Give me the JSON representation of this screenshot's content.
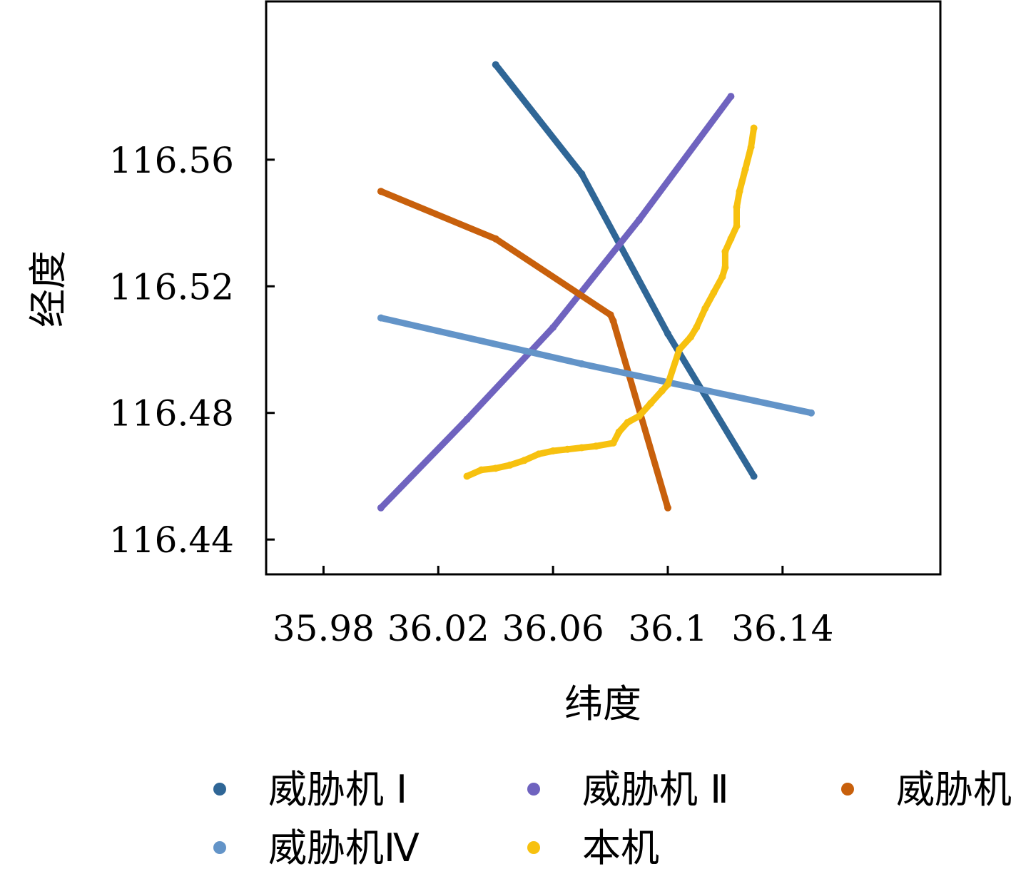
{
  "chart_data": {
    "type": "scatter",
    "xlabel": "纬度",
    "ylabel": "经度",
    "xlim": [
      35.96,
      36.195
    ],
    "ylim": [
      116.429,
      116.61
    ],
    "xticks": [
      35.98,
      36.02,
      36.06,
      36.1,
      36.14
    ],
    "xtick_labels": [
      "35.98",
      "36.02",
      "36.06",
      "36.1",
      "36.14"
    ],
    "yticks": [
      116.44,
      116.48,
      116.52,
      116.56
    ],
    "ytick_labels": [
      "116.44",
      "116.48",
      "116.52",
      "116.56"
    ],
    "grid": false,
    "legend_position": "bottom",
    "series": [
      {
        "name": "威胁机 Ⅰ",
        "color": "#2f6696",
        "points": [
          [
            36.04,
            116.59
          ],
          [
            36.07,
            116.5555
          ],
          [
            36.1,
            116.505
          ],
          [
            36.13,
            116.46
          ]
        ]
      },
      {
        "name": "威胁机 Ⅱ",
        "color": "#6f63bf",
        "points": [
          [
            36.0,
            116.45
          ],
          [
            36.03,
            116.478
          ],
          [
            36.06,
            116.507
          ],
          [
            36.09,
            116.541
          ],
          [
            36.122,
            116.58
          ]
        ]
      },
      {
        "name": "威胁机Ⅲ",
        "color": "#c8600c",
        "points": [
          [
            36.0,
            116.55
          ],
          [
            36.04,
            116.535
          ],
          [
            36.08,
            116.511
          ],
          [
            36.081,
            116.509
          ],
          [
            36.1,
            116.45
          ]
        ]
      },
      {
        "name": "威胁机Ⅳ",
        "color": "#6394c8",
        "points": [
          [
            36.0,
            116.51
          ],
          [
            36.07,
            116.4955
          ],
          [
            36.15,
            116.48
          ]
        ]
      },
      {
        "name": "本机",
        "color": "#f7c10f",
        "points": [
          [
            36.03,
            116.46
          ],
          [
            36.035,
            116.462
          ],
          [
            36.04,
            116.4625
          ],
          [
            36.045,
            116.4635
          ],
          [
            36.05,
            116.465
          ],
          [
            36.055,
            116.467
          ],
          [
            36.06,
            116.468
          ],
          [
            36.065,
            116.4685
          ],
          [
            36.07,
            116.469
          ],
          [
            36.075,
            116.4695
          ],
          [
            36.081,
            116.4705
          ],
          [
            36.083,
            116.474
          ],
          [
            36.086,
            116.477
          ],
          [
            36.09,
            116.479
          ],
          [
            36.094,
            116.483
          ],
          [
            36.098,
            116.487
          ],
          [
            36.1,
            116.489
          ],
          [
            36.104,
            116.5
          ],
          [
            36.108,
            116.504
          ],
          [
            36.11,
            116.507
          ],
          [
            36.113,
            116.513
          ],
          [
            36.116,
            116.518
          ],
          [
            36.119,
            116.523
          ],
          [
            36.12,
            116.526
          ],
          [
            36.12,
            116.531
          ],
          [
            36.122,
            116.535
          ],
          [
            36.124,
            116.539
          ],
          [
            36.124,
            116.545
          ],
          [
            36.125,
            116.55
          ],
          [
            36.127,
            116.557
          ],
          [
            36.129,
            116.564
          ],
          [
            36.13,
            116.57
          ]
        ]
      }
    ]
  }
}
